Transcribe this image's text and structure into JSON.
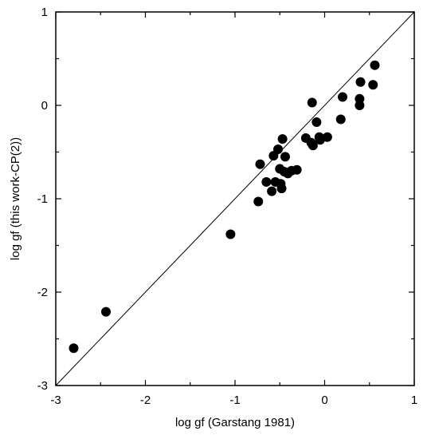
{
  "chart_data": {
    "type": "scatter",
    "title": "",
    "xlabel": "log gf (Garstang 1981)",
    "ylabel": "log gf (this work-CP(2))",
    "xlim": [
      -3,
      1
    ],
    "ylim": [
      -3,
      1
    ],
    "xticks": [
      "-3",
      "-2",
      "-1",
      "0",
      "1"
    ],
    "yticks": [
      "-3",
      "-2",
      "-1",
      "0",
      "1"
    ],
    "grid": false,
    "reference_line": {
      "type": "y=x"
    },
    "marker_color": "#000000",
    "series": [
      {
        "points": [
          [
            -2.8,
            -2.6
          ],
          [
            -2.44,
            -2.21
          ],
          [
            -1.05,
            -1.38
          ],
          [
            -0.74,
            -1.03
          ],
          [
            -0.72,
            -0.63
          ],
          [
            -0.65,
            -0.82
          ],
          [
            -0.59,
            -0.92
          ],
          [
            -0.57,
            -0.54
          ],
          [
            -0.55,
            -0.82
          ],
          [
            -0.52,
            -0.47
          ],
          [
            -0.5,
            -0.68
          ],
          [
            -0.49,
            -0.84
          ],
          [
            -0.48,
            -0.89
          ],
          [
            -0.47,
            -0.36
          ],
          [
            -0.45,
            -0.71
          ],
          [
            -0.44,
            -0.55
          ],
          [
            -0.41,
            -0.73
          ],
          [
            -0.37,
            -0.7
          ],
          [
            -0.31,
            -0.69
          ],
          [
            -0.21,
            -0.35
          ],
          [
            -0.15,
            -0.4
          ],
          [
            -0.14,
            0.03
          ],
          [
            -0.13,
            -0.43
          ],
          [
            -0.09,
            -0.18
          ],
          [
            -0.06,
            -0.34
          ],
          [
            -0.05,
            -0.37
          ],
          [
            0.03,
            -0.34
          ],
          [
            0.18,
            -0.15
          ],
          [
            0.2,
            0.09
          ],
          [
            0.39,
            0.0
          ],
          [
            0.39,
            0.07
          ],
          [
            0.4,
            0.25
          ],
          [
            0.54,
            0.22
          ],
          [
            0.56,
            0.43
          ]
        ]
      }
    ]
  }
}
